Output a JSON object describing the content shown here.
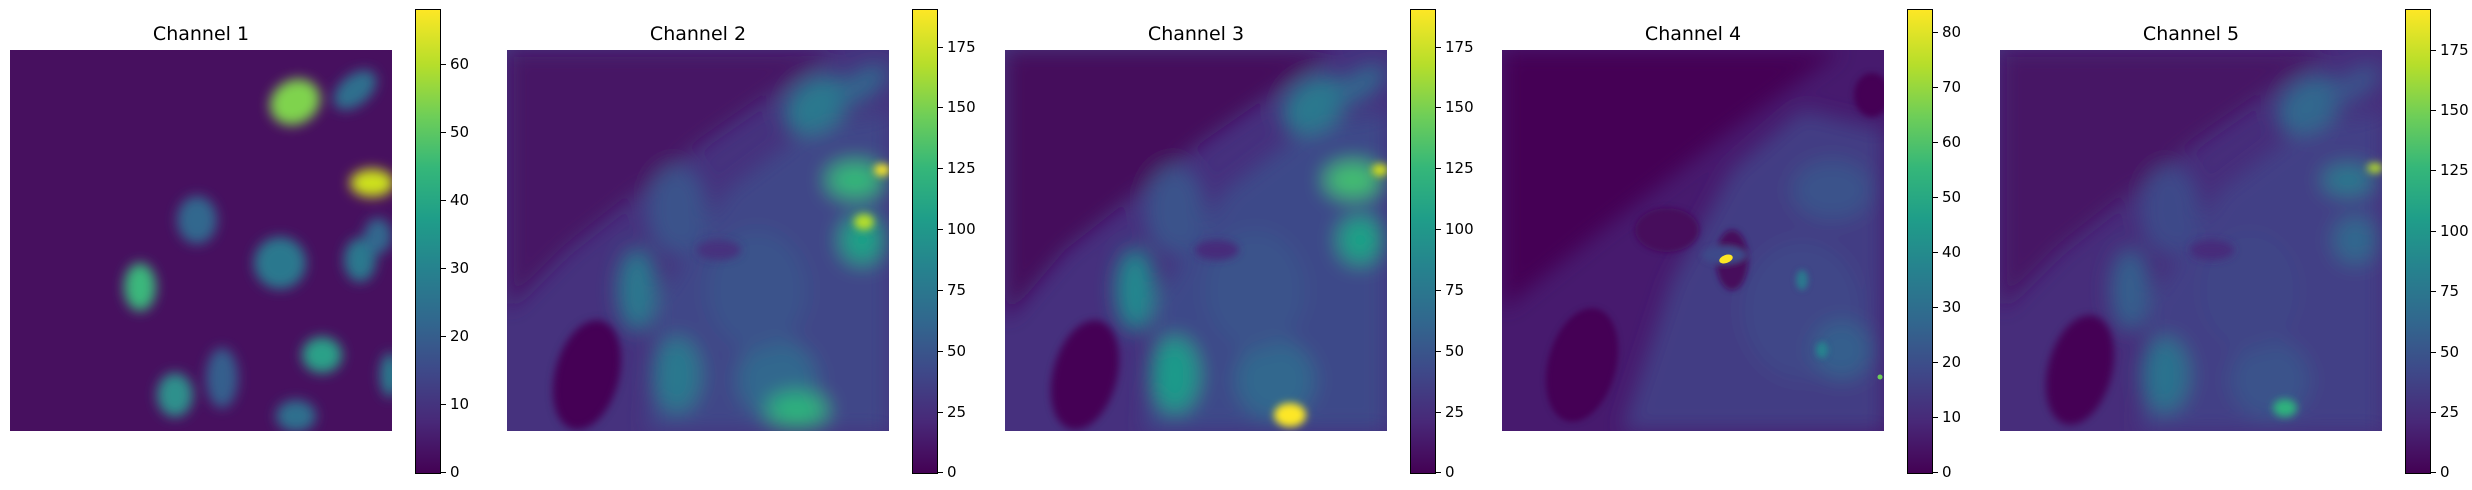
{
  "panels": [
    {
      "title": "Channel 1",
      "vmax": 68,
      "ticks": [
        "0",
        "10",
        "20",
        "30",
        "40",
        "50",
        "60"
      ],
      "tick_values": [
        0,
        10,
        20,
        30,
        40,
        50,
        60
      ],
      "bg": "#47105f"
    },
    {
      "title": "Channel 2",
      "vmax": 190,
      "ticks": [
        "0",
        "25",
        "50",
        "75",
        "100",
        "125",
        "150",
        "175"
      ],
      "tick_values": [
        0,
        25,
        50,
        75,
        100,
        125,
        150,
        175
      ],
      "bg": "#482a7c"
    },
    {
      "title": "Channel 3",
      "vmax": 190,
      "ticks": [
        "0",
        "25",
        "50",
        "75",
        "100",
        "125",
        "150",
        "175"
      ],
      "tick_values": [
        0,
        25,
        50,
        75,
        100,
        125,
        150,
        175
      ],
      "bg": "#482677"
    },
    {
      "title": "Channel 4",
      "vmax": 84,
      "ticks": [
        "0",
        "10",
        "20",
        "30",
        "40",
        "50",
        "60",
        "70",
        "80"
      ],
      "tick_values": [
        0,
        10,
        20,
        30,
        40,
        50,
        60,
        70,
        80
      ],
      "bg": "#471164"
    },
    {
      "title": "Channel 5",
      "vmax": 192,
      "ticks": [
        "0",
        "25",
        "50",
        "75",
        "100",
        "125",
        "150",
        "175"
      ],
      "tick_values": [
        0,
        25,
        50,
        75,
        100,
        125,
        150,
        175
      ],
      "bg": "#48237a"
    }
  ],
  "colormap": "viridis"
}
